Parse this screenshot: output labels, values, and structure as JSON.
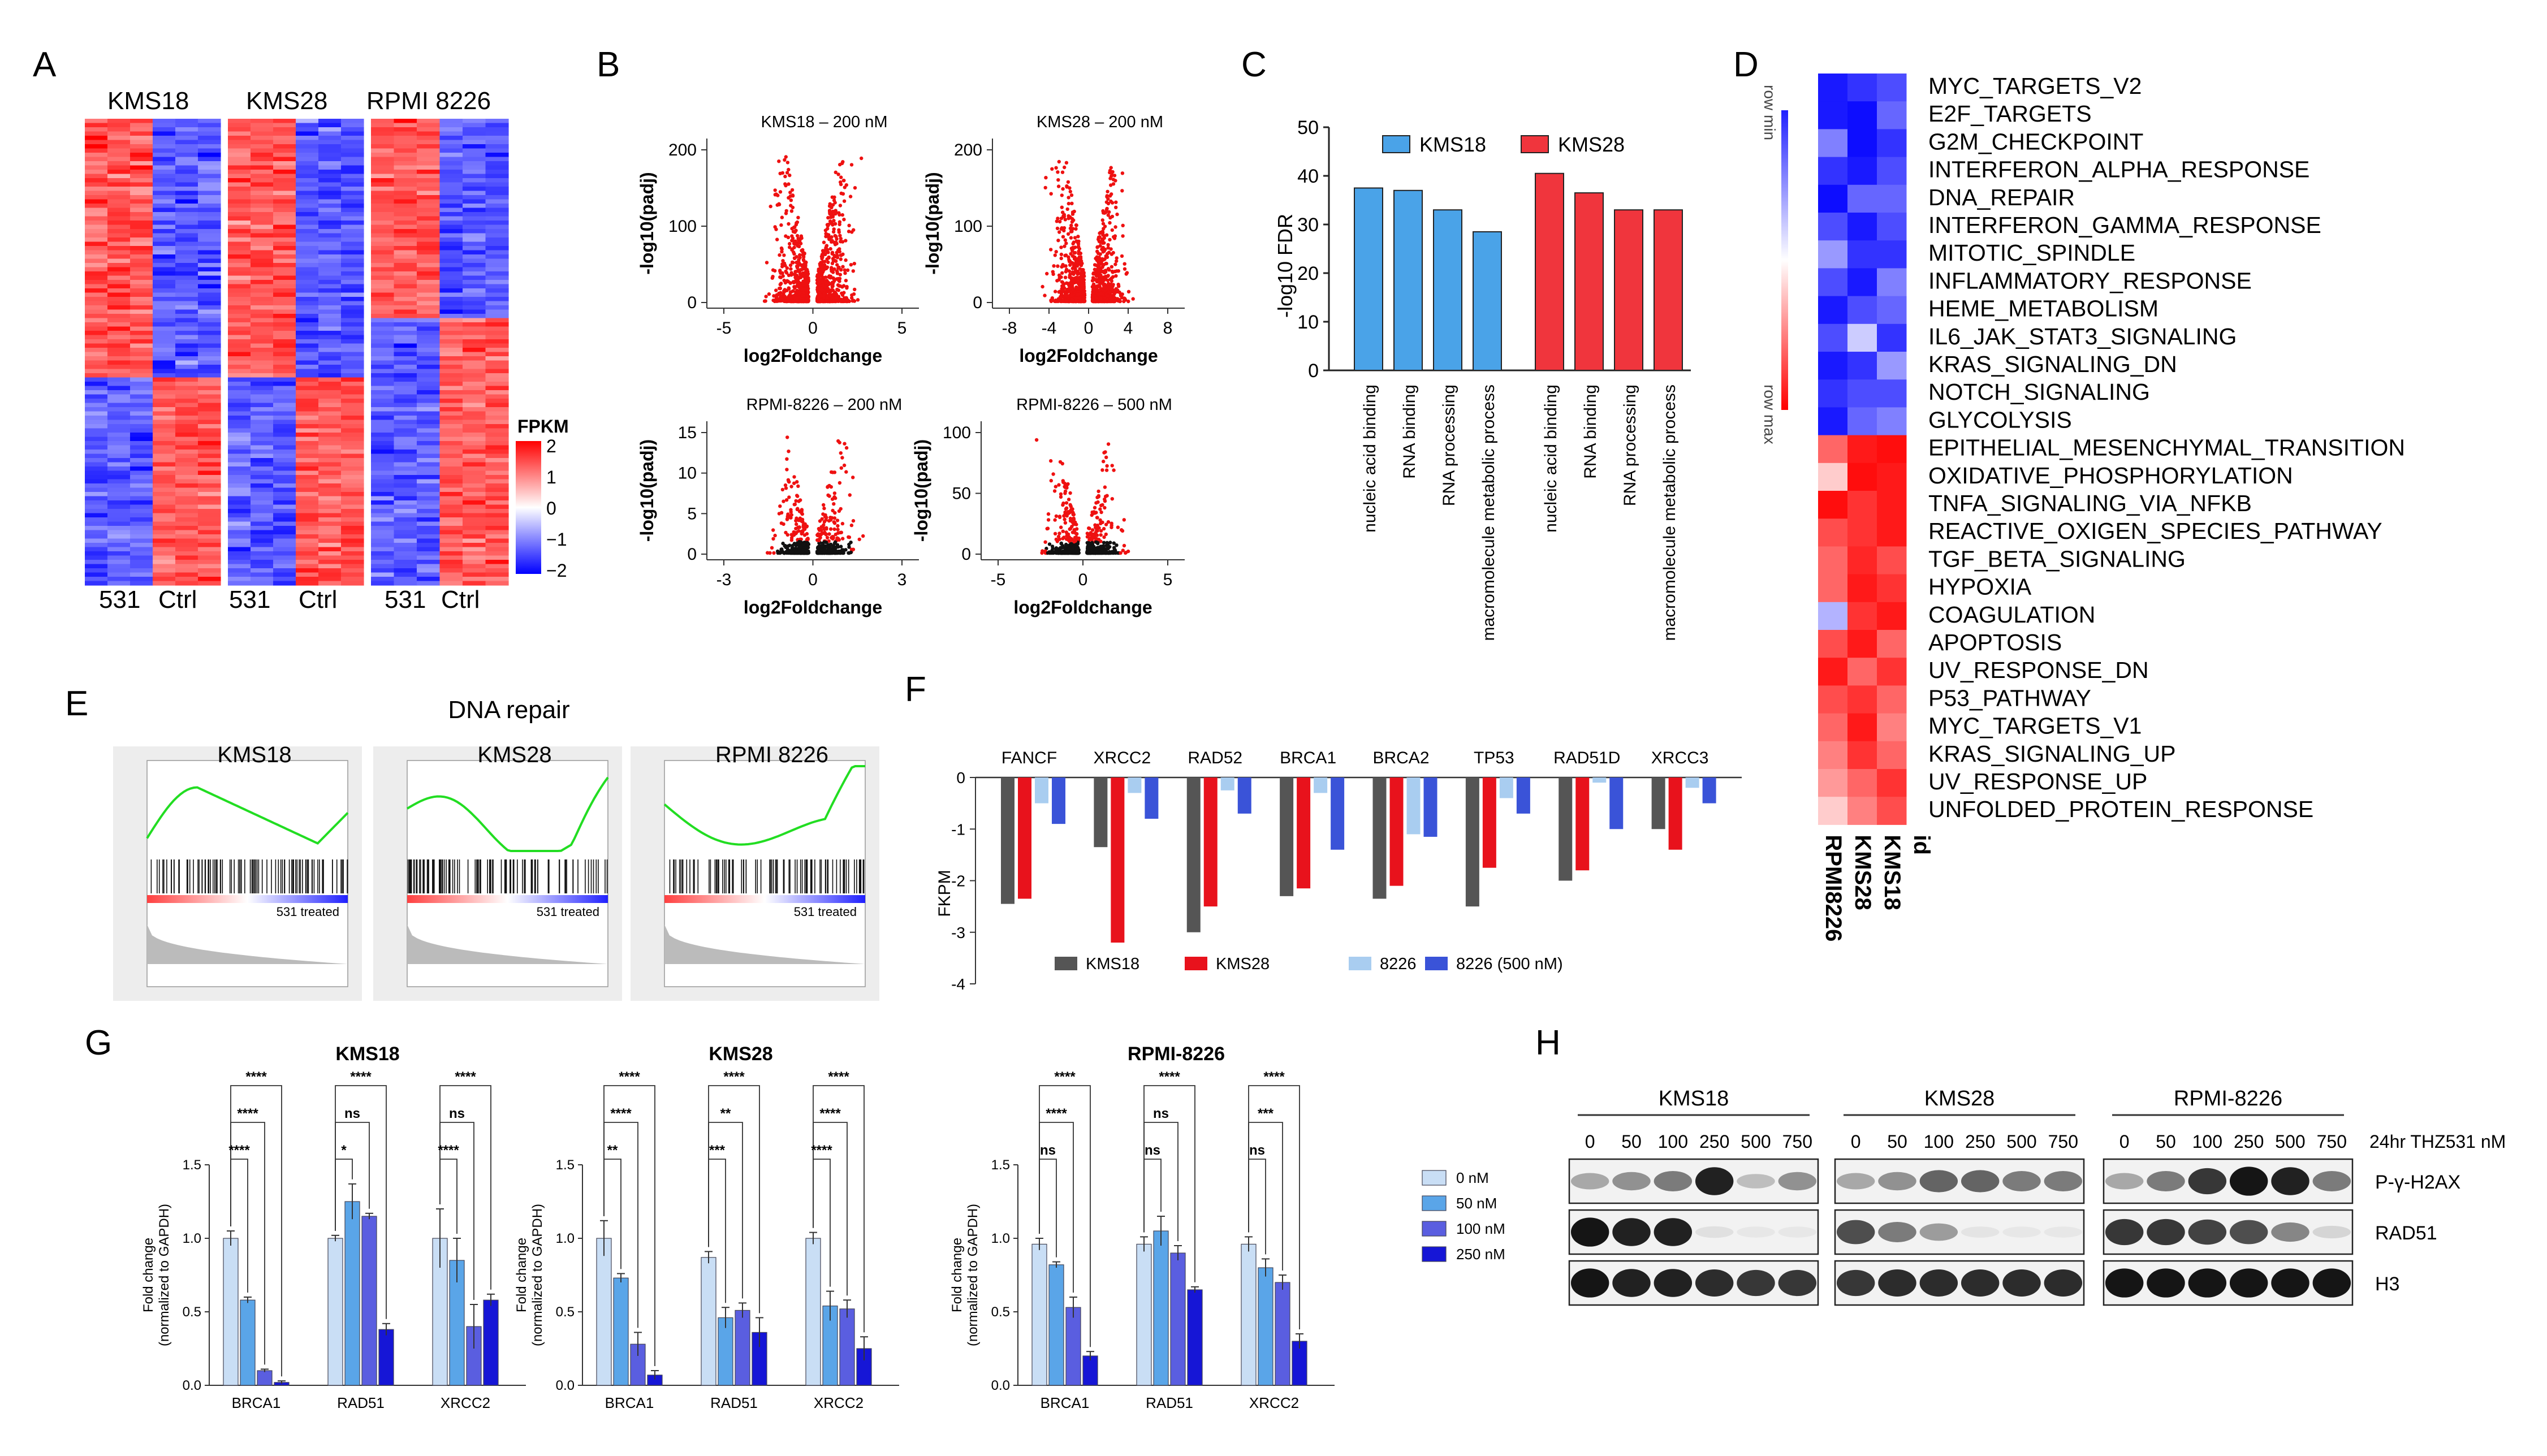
{
  "panel_letters": [
    "A",
    "B",
    "C",
    "D",
    "E",
    "F",
    "G",
    "H"
  ],
  "panel_a": {
    "cell_lines": [
      "KMS18",
      "KMS28",
      "RPMI 8226"
    ],
    "group_labels": [
      "531",
      "Ctrl"
    ],
    "legend_title": "FPKM",
    "legend_ticks": [
      "2",
      "1",
      "0",
      "−1",
      "−2"
    ]
  },
  "panel_b": {
    "plots": [
      {
        "title": "KMS18 – 200 nM",
        "xlabel": "log2Foldchange",
        "ylabel": "-log10(padj)",
        "xticks": [
          "-5",
          "0",
          "5"
        ],
        "yticks": [
          "0",
          "100",
          "200"
        ]
      },
      {
        "title": "KMS28 – 200 nM",
        "xlabel": "log2Foldchange",
        "ylabel": "-log10(padj)",
        "xticks": [
          "-8",
          "-4",
          "0",
          "4",
          "8"
        ],
        "yticks": [
          "0",
          "100",
          "200"
        ]
      },
      {
        "title": "RPMI-8226 – 200 nM",
        "xlabel": "log2Foldchange",
        "ylabel": "-log10(padj)",
        "xticks": [
          "-3",
          "0",
          "3"
        ],
        "yticks": [
          "0",
          "5",
          "10",
          "15"
        ]
      },
      {
        "title": "RPMI-8226 – 500 nM",
        "xlabel": "log2Foldchange",
        "ylabel": "-log10(padj)",
        "xticks": [
          "-5",
          "0",
          "5"
        ],
        "yticks": [
          "0",
          "50",
          "100"
        ]
      }
    ]
  },
  "chart_c": {
    "type": "bar",
    "ylabel": "-log10 FDR",
    "ylim": [
      0,
      50
    ],
    "yticks": [
      "0",
      "10",
      "20",
      "30",
      "40",
      "50"
    ],
    "categories": [
      "nucleic acid binding",
      "RNA binding",
      "RNA processing",
      "macromolecule metabolic process"
    ],
    "series": [
      {
        "name": "KMS18",
        "color": "#4aa3e8",
        "values": [
          37.5,
          37,
          33,
          28.5
        ]
      },
      {
        "name": "KMS28",
        "color": "#f0353d",
        "values": [
          40.5,
          36.5,
          33,
          33
        ]
      }
    ]
  },
  "panel_d": {
    "scale_max_label": "row max",
    "scale_min_label": "row min",
    "columns": [
      "RPMI8226",
      "KMS28",
      "KMS18"
    ],
    "id_label": "id",
    "pathways": [
      "MYC_TARGETS_V2",
      "E2F_TARGETS",
      "G2M_CHECKPOINT",
      "INTERFERON_ALPHA_RESPONSE",
      "DNA_REPAIR",
      "INTERFERON_GAMMA_RESPONSE",
      "MITOTIC_SPINDLE",
      "INFLAMMATORY_RESPONSE",
      "HEME_METABOLISM",
      "IL6_JAK_STAT3_SIGNALING",
      "KRAS_SIGNALING_DN",
      "NOTCH_SIGNALING",
      "GLYCOLYSIS",
      "EPITHELIAL_MESENCHYMAL_TRANSITION",
      "OXIDATIVE_PHOSPHORYLATION",
      "TNFA_SIGNALING_VIA_NFKB",
      "REACTIVE_OXIGEN_SPECIES_PATHWAY",
      "TGF_BETA_SIGNALING",
      "HYPOXIA",
      "COAGULATION",
      "APOPTOSIS",
      "UV_RESPONSE_DN",
      "P53_PATHWAY",
      "MYC_TARGETS_V1",
      "KRAS_SIGNALING_UP",
      "UV_RESPONSE_UP",
      "UNFOLDED_PROTEIN_RESPONSE"
    ],
    "values": [
      [
        -0.9,
        -0.8,
        -0.7
      ],
      [
        -0.9,
        -0.95,
        -0.6
      ],
      [
        -0.5,
        -0.95,
        -0.8
      ],
      [
        -0.8,
        -0.9,
        -0.7
      ],
      [
        -0.95,
        -0.6,
        -0.6
      ],
      [
        -0.7,
        -0.9,
        -0.7
      ],
      [
        -0.4,
        -0.8,
        -0.8
      ],
      [
        -0.7,
        -0.9,
        -0.5
      ],
      [
        -0.9,
        -0.7,
        -0.6
      ],
      [
        -0.7,
        -0.2,
        -0.8
      ],
      [
        -0.9,
        -0.8,
        -0.4
      ],
      [
        -0.8,
        -0.7,
        -0.7
      ],
      [
        -0.9,
        -0.6,
        -0.5
      ],
      [
        0.6,
        0.9,
        0.95
      ],
      [
        0.2,
        0.95,
        0.9
      ],
      [
        0.95,
        0.8,
        0.9
      ],
      [
        0.7,
        0.8,
        0.9
      ],
      [
        0.6,
        0.85,
        0.7
      ],
      [
        0.6,
        0.9,
        0.8
      ],
      [
        -0.3,
        0.8,
        0.9
      ],
      [
        0.7,
        0.9,
        0.6
      ],
      [
        0.9,
        0.6,
        0.8
      ],
      [
        0.7,
        0.8,
        0.6
      ],
      [
        0.6,
        0.9,
        0.5
      ],
      [
        0.5,
        0.8,
        0.6
      ],
      [
        0.4,
        0.6,
        0.8
      ],
      [
        0.2,
        0.5,
        0.7
      ]
    ]
  },
  "panel_e": {
    "title": "DNA repair",
    "plots": [
      "KMS18",
      "KMS28",
      "RPMI 8226"
    ],
    "treated_label": "531 treated"
  },
  "chart_f": {
    "type": "bar",
    "ylabel": "FKPM",
    "ylim": [
      -4,
      0
    ],
    "yticks": [
      "0",
      "-1",
      "-2",
      "-3",
      "-4"
    ],
    "categories": [
      "FANCF",
      "XRCC2",
      "RAD52",
      "BRCA1",
      "BRCA2",
      "TP53",
      "RAD51D",
      "XRCC3"
    ],
    "series": [
      {
        "name": "KMS18",
        "color": "#555555",
        "values": [
          -2.45,
          -1.35,
          -3.0,
          -2.3,
          -2.35,
          -2.5,
          -2.0,
          -1.0
        ]
      },
      {
        "name": "KMS28",
        "color": "#e8121c",
        "values": [
          -2.35,
          -3.2,
          -2.5,
          -2.15,
          -2.1,
          -1.75,
          -1.8,
          -1.4
        ]
      },
      {
        "name": "8226",
        "color": "#a9cdf0",
        "values": [
          -0.5,
          -0.3,
          -0.25,
          -0.3,
          -1.1,
          -0.4,
          -0.1,
          -0.2
        ]
      },
      {
        "name": "8226 (500 nM)",
        "color": "#3a53d8",
        "values": [
          -0.9,
          -0.8,
          -0.7,
          -1.4,
          -1.15,
          -0.7,
          -1.0,
          -0.5
        ]
      }
    ]
  },
  "chart_g": {
    "type": "bar",
    "ylabel": "Fold change",
    "ylabel2": "(normalized to GAPDH)",
    "legend": [
      "0 nM",
      "50 nM",
      "100 nM",
      "250 nM"
    ],
    "colors": [
      "#c9def5",
      "#5aa5e8",
      "#5a5ee0",
      "#1616d6"
    ],
    "panels": [
      {
        "title": "KMS18",
        "categories": [
          "BRCA1",
          "RAD51",
          "XRCC2"
        ],
        "yticks": [
          "0.0",
          "0.5",
          "1.0",
          "1.5"
        ],
        "ylim": [
          0,
          1.5
        ],
        "values": [
          [
            1.0,
            0.58,
            0.1,
            0.02
          ],
          [
            1.0,
            1.25,
            1.15,
            0.38
          ],
          [
            1.0,
            0.85,
            0.4,
            0.58
          ]
        ],
        "errors": [
          [
            0.05,
            0.02,
            0.01,
            0.01
          ],
          [
            0.02,
            0.12,
            0.02,
            0.04
          ],
          [
            0.2,
            0.15,
            0.15,
            0.04
          ]
        ],
        "sig": [
          [
            "****",
            "****",
            "****"
          ],
          [
            "****",
            "ns",
            "*"
          ],
          [
            "****",
            "ns",
            "****"
          ]
        ]
      },
      {
        "title": "KMS28",
        "categories": [
          "BRCA1",
          "RAD51",
          "XRCC2"
        ],
        "yticks": [
          "0.0",
          "0.5",
          "1.0",
          "1.5"
        ],
        "ylim": [
          0,
          1.5
        ],
        "values": [
          [
            1.0,
            0.73,
            0.28,
            0.07
          ],
          [
            0.87,
            0.46,
            0.51,
            0.36
          ],
          [
            1.0,
            0.54,
            0.52,
            0.25
          ]
        ],
        "errors": [
          [
            0.12,
            0.03,
            0.08,
            0.03
          ],
          [
            0.04,
            0.07,
            0.05,
            0.1
          ],
          [
            0.04,
            0.1,
            0.06,
            0.08
          ]
        ],
        "sig": [
          [
            "****",
            "****",
            "**"
          ],
          [
            "****",
            "**",
            "***"
          ],
          [
            "****",
            "****",
            "****"
          ]
        ]
      },
      {
        "title": "RPMI-8226",
        "categories": [
          "BRCA1",
          "RAD51",
          "XRCC2"
        ],
        "yticks": [
          "0.0",
          "0.5",
          "1.0",
          "1.5"
        ],
        "ylim": [
          0,
          1.5
        ],
        "values": [
          [
            0.96,
            0.82,
            0.53,
            0.2
          ],
          [
            0.96,
            1.05,
            0.9,
            0.65
          ],
          [
            0.96,
            0.8,
            0.7,
            0.3
          ]
        ],
        "errors": [
          [
            0.04,
            0.02,
            0.07,
            0.03
          ],
          [
            0.05,
            0.1,
            0.05,
            0.02
          ],
          [
            0.05,
            0.06,
            0.05,
            0.05
          ]
        ],
        "sig": [
          [
            "****",
            "****",
            "ns"
          ],
          [
            "****",
            "ns",
            "ns"
          ],
          [
            "****",
            "***",
            "ns"
          ]
        ]
      }
    ]
  },
  "panel_h": {
    "groups": [
      "KMS18",
      "KMS28",
      "RPMI-8226"
    ],
    "doses": [
      "0",
      "50",
      "100",
      "250",
      "500",
      "750"
    ],
    "treatment_label": "24hr THZ531 nM",
    "rows": [
      "P-γ-H2AX",
      "RAD51",
      "H3"
    ],
    "intensities": [
      [
        [
          0.3,
          0.4,
          0.5,
          0.9,
          0.2,
          0.4
        ],
        [
          0.3,
          0.4,
          0.6,
          0.6,
          0.5,
          0.5
        ],
        [
          0.3,
          0.5,
          0.8,
          0.95,
          0.9,
          0.5
        ]
      ],
      [
        [
          0.95,
          0.9,
          0.9,
          0.05,
          0.02,
          0.02
        ],
        [
          0.7,
          0.5,
          0.35,
          0.03,
          0.02,
          0.02
        ],
        [
          0.8,
          0.8,
          0.75,
          0.7,
          0.45,
          0.1
        ]
      ],
      [
        [
          0.95,
          0.9,
          0.9,
          0.85,
          0.8,
          0.8
        ],
        [
          0.8,
          0.85,
          0.85,
          0.85,
          0.85,
          0.85
        ],
        [
          0.95,
          0.95,
          0.95,
          0.95,
          0.95,
          0.95
        ]
      ]
    ]
  }
}
